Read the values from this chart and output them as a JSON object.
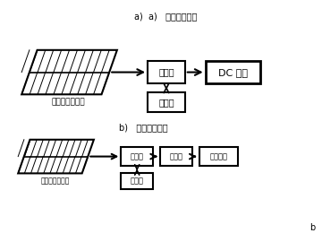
{
  "title_a": "a)  a)   直流负载系统",
  "title_b": "b)   交流负载系统",
  "label_solar_a": "太阳能电池组件",
  "label_solar_b": "太阳能电池组件",
  "label_controller_a": "控制器",
  "label_battery_a": "电瓶组",
  "label_dc": "DC 负载",
  "label_controller_b": "控制器",
  "label_battery_b": "电瓶组",
  "label_inverter": "逆变器",
  "label_ac": "交流负载",
  "bg_color": "#ffffff",
  "box_color": "#ffffff",
  "line_color": "#000000"
}
